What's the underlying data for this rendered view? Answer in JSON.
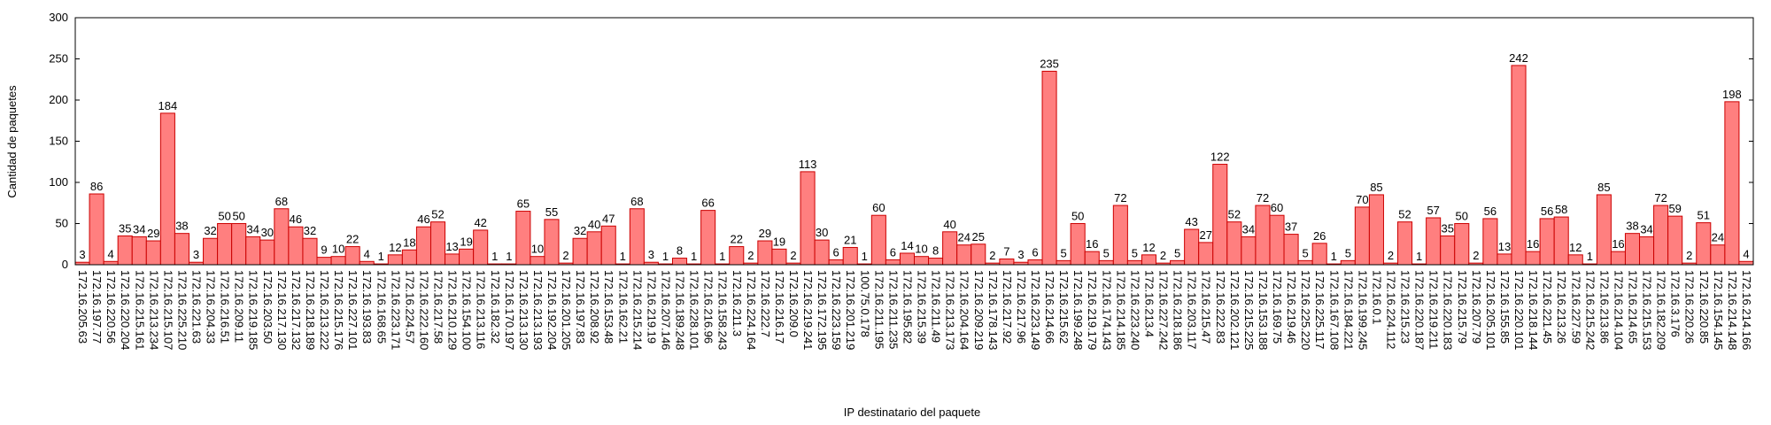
{
  "chart_data": {
    "type": "bar",
    "ylabel": "Cantidad de paquetes",
    "xlabel": "IP destinatario del paquete",
    "color": "#ff7f7f",
    "edgecolor": "#cc0000",
    "ylim": [
      0,
      300
    ],
    "yticks": [
      0,
      50,
      100,
      150,
      200,
      250,
      300
    ],
    "categories": [
      "172.16.205.63",
      "172.16.197.77",
      "172.16.220.56",
      "172.16.220.204",
      "172.16.215.161",
      "172.16.213.234",
      "172.16.215.107",
      "172.16.225.210",
      "172.16.221.63",
      "172.16.204.33",
      "172.16.216.51",
      "172.16.209.11",
      "172.16.219.185",
      "172.16.203.50",
      "172.16.217.130",
      "172.16.217.132",
      "172.16.218.189",
      "172.16.213.222",
      "172.16.215.176",
      "172.16.227.101",
      "172.16.193.83",
      "172.16.168.65",
      "172.16.223.171",
      "172.16.224.57",
      "172.16.222.160",
      "172.16.217.58",
      "172.16.210.129",
      "172.16.154.100",
      "172.16.213.116",
      "172.16.182.32",
      "172.16.170.197",
      "172.16.213.130",
      "172.16.213.193",
      "172.16.192.204",
      "172.16.201.205",
      "172.16.197.83",
      "172.16.208.92",
      "172.16.153.48",
      "172.16.162.21",
      "172.16.215.214",
      "172.16.219.19",
      "172.16.207.146",
      "172.16.189.248",
      "172.16.228.101",
      "172.16.216.96",
      "172.16.158.243",
      "172.16.211.3",
      "172.16.224.164",
      "172.16.222.7",
      "172.16.216.17",
      "172.16.209.0",
      "172.16.219.241",
      "172.16.172.195",
      "172.16.223.159",
      "172.16.201.219",
      "100.75.0.178",
      "172.16.211.195",
      "172.16.211.235",
      "172.16.195.82",
      "172.16.215.39",
      "172.16.211.49",
      "172.16.213.173",
      "172.16.204.164",
      "172.16.209.219",
      "172.16.178.143",
      "172.16.217.92",
      "172.16.217.96",
      "172.16.223.149",
      "172.16.214.66",
      "172.16.215.62",
      "172.16.199.248",
      "172.16.219.179",
      "172.16.174.143",
      "172.16.214.185",
      "172.16.223.240",
      "172.16.213.4",
      "172.16.227.242",
      "172.16.218.186",
      "172.16.203.117",
      "172.16.215.47",
      "172.16.222.83",
      "172.16.202.121",
      "172.16.215.225",
      "172.16.153.188",
      "172.16.169.75",
      "172.16.219.46",
      "172.16.225.220",
      "172.16.225.117",
      "172.16.167.108",
      "172.16.184.221",
      "172.16.199.245",
      "172.16.0.1",
      "172.16.224.112",
      "172.16.215.23",
      "172.16.220.187",
      "172.16.219.211",
      "172.16.220.183",
      "172.16.215.79",
      "172.16.207.79",
      "172.16.205.101",
      "172.16.155.85",
      "172.16.220.101",
      "172.16.218.144",
      "172.16.221.45",
      "172.16.213.26",
      "172.16.227.59",
      "172.16.215.242",
      "172.16.213.86",
      "172.16.214.104",
      "172.16.214.65",
      "172.16.215.153",
      "172.16.182.209",
      "172.16.3.176",
      "172.16.220.26",
      "172.16.220.85",
      "172.16.154.145",
      "172.16.214.148",
      "172.16.214.166"
    ],
    "values": [
      3,
      86,
      4,
      35,
      34,
      29,
      184,
      38,
      3,
      32,
      50,
      50,
      34,
      30,
      68,
      46,
      32,
      9,
      10,
      22,
      4,
      1,
      12,
      18,
      46,
      52,
      13,
      19,
      42,
      1,
      1,
      65,
      10,
      55,
      2,
      32,
      40,
      47,
      1,
      68,
      3,
      1,
      8,
      1,
      66,
      1,
      22,
      2,
      29,
      19,
      2,
      113,
      30,
      6,
      21,
      1,
      60,
      6,
      14,
      10,
      8,
      40,
      24,
      25,
      2,
      7,
      3,
      6,
      235,
      5,
      50,
      16,
      5,
      72,
      5,
      12,
      2,
      5,
      43,
      27,
      122,
      52,
      34,
      72,
      60,
      37,
      5,
      26,
      1,
      5,
      70,
      85,
      2,
      52,
      1,
      57,
      35,
      50,
      2,
      56,
      13,
      242,
      16,
      56,
      58,
      12,
      1,
      85,
      16,
      38,
      34,
      72,
      59,
      2,
      51,
      24,
      198,
      4
    ]
  }
}
